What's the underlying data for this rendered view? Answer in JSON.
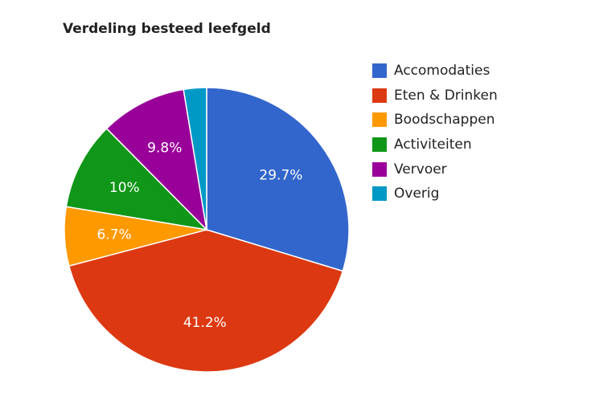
{
  "chart_data": {
    "type": "pie",
    "title": "Verdeling besteed leefgeld",
    "categories": [
      "Accomodaties",
      "Eten & Drinken",
      "Boodschappen",
      "Activiteiten",
      "Vervoer",
      "Overig"
    ],
    "values": [
      29.7,
      41.2,
      6.7,
      10,
      9.8,
      2.6
    ],
    "labels": [
      "29.7%",
      "41.2%",
      "6.7%",
      "10%",
      "9.8%",
      ""
    ],
    "colors": [
      "#3366cc",
      "#dc3912",
      "#ff9900",
      "#109618",
      "#990099",
      "#0099c6"
    ],
    "legend": "right"
  }
}
